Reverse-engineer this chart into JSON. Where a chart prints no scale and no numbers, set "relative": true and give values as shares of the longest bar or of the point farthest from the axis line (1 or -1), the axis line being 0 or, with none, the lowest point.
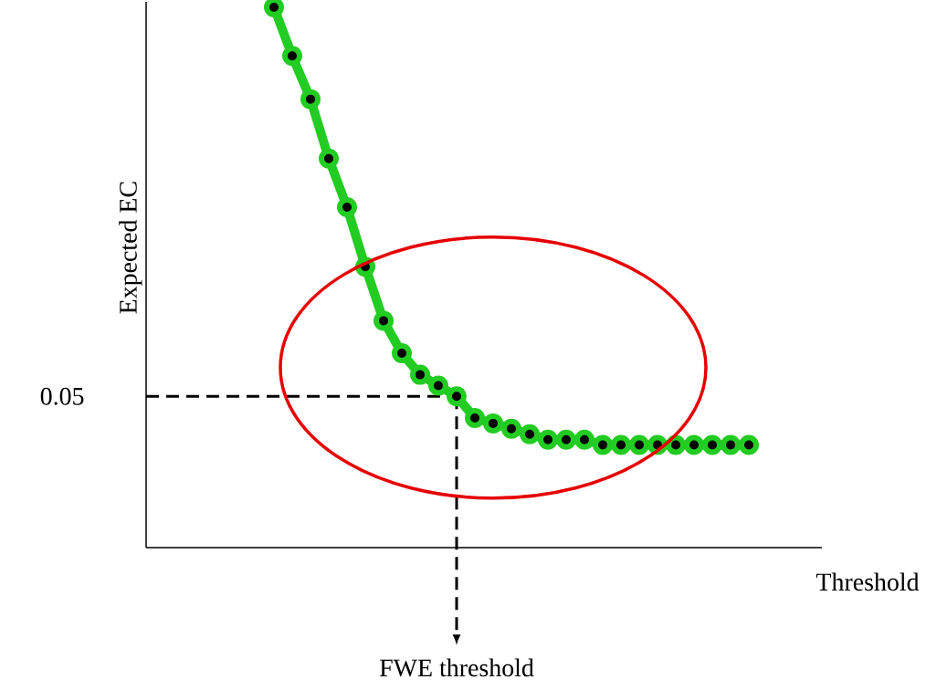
{
  "chart_data": {
    "type": "line",
    "relative": true,
    "xlabel": "Threshold",
    "ylabel": "Expected EC",
    "categories": [
      null,
      null,
      null,
      null,
      null,
      null,
      null,
      null,
      null,
      null,
      null,
      null,
      null,
      null,
      null,
      null,
      null,
      null,
      null,
      null,
      null,
      null,
      null,
      null,
      null,
      null,
      null,
      null,
      null,
      null,
      null,
      null,
      null,
      null,
      null,
      null,
      null,
      null
    ],
    "values": [
      null,
      null,
      null,
      null,
      null,
      null,
      null,
      1,
      0.91,
      0.83,
      0.72,
      0.63,
      0.52,
      0.42,
      0.36,
      0.32,
      0.3,
      0.28,
      0.24,
      0.23,
      0.22,
      0.21,
      0.2,
      0.2,
      0.2,
      0.19,
      0.19,
      0.19,
      0.19,
      0.19,
      0.19,
      0.19,
      0.19,
      0.19,
      null,
      null,
      null,
      null
    ],
    "color": "#22cc22",
    "marker": "circle",
    "line_style": "solid",
    "ref_lines": [
      {
        "axis": "y",
        "value": 0.28,
        "color": "#000000",
        "line_style": "dashed"
      }
    ],
    "annotations": [
      "0.05",
      "FWE threshold"
    ]
  }
}
